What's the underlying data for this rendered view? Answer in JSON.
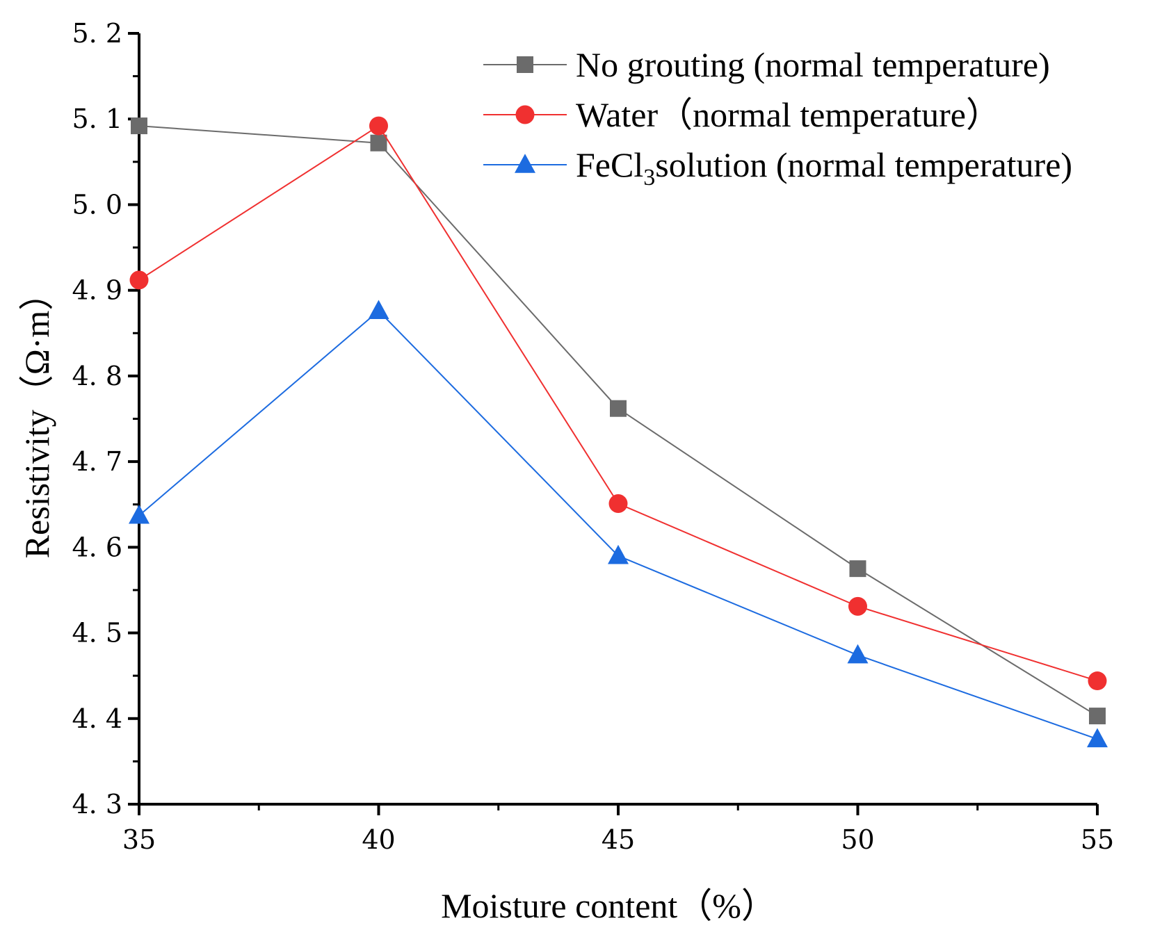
{
  "chart_data": {
    "type": "line",
    "title": "",
    "xlabel": "Moisture content（%）",
    "ylabel": "Resistivity（Ω·m）",
    "x": [
      35,
      40,
      45,
      50,
      55
    ],
    "xlim": [
      35,
      55
    ],
    "ylim": [
      4.3,
      5.2
    ],
    "x_ticks": [
      "35",
      "40",
      "45",
      "50",
      "55"
    ],
    "y_ticks": [
      "4. 3",
      "4. 4",
      "4. 5",
      "4. 6",
      "4. 7",
      "4. 8",
      "4. 9",
      "5. 0",
      "5. 1",
      "5. 2"
    ],
    "grid": false,
    "legend_position": "top-right",
    "series": [
      {
        "name": "No grouting (normal temperature)",
        "marker": "square",
        "color": "#6b6b6b",
        "values": [
          5.092,
          5.072,
          4.762,
          4.575,
          4.403
        ]
      },
      {
        "name": "Water（normal temperature）",
        "marker": "circle",
        "color": "#f03030",
        "values": [
          4.912,
          5.092,
          4.651,
          4.531,
          4.444
        ]
      },
      {
        "name": "FeCl3solution (normal temperature)",
        "name_parts": {
          "pre": "FeCl",
          "sub": "3",
          "post": "solution (normal temperature)"
        },
        "marker": "triangle",
        "color": "#1c6be0",
        "values": [
          4.637,
          4.876,
          4.59,
          4.474,
          4.376
        ]
      }
    ]
  }
}
